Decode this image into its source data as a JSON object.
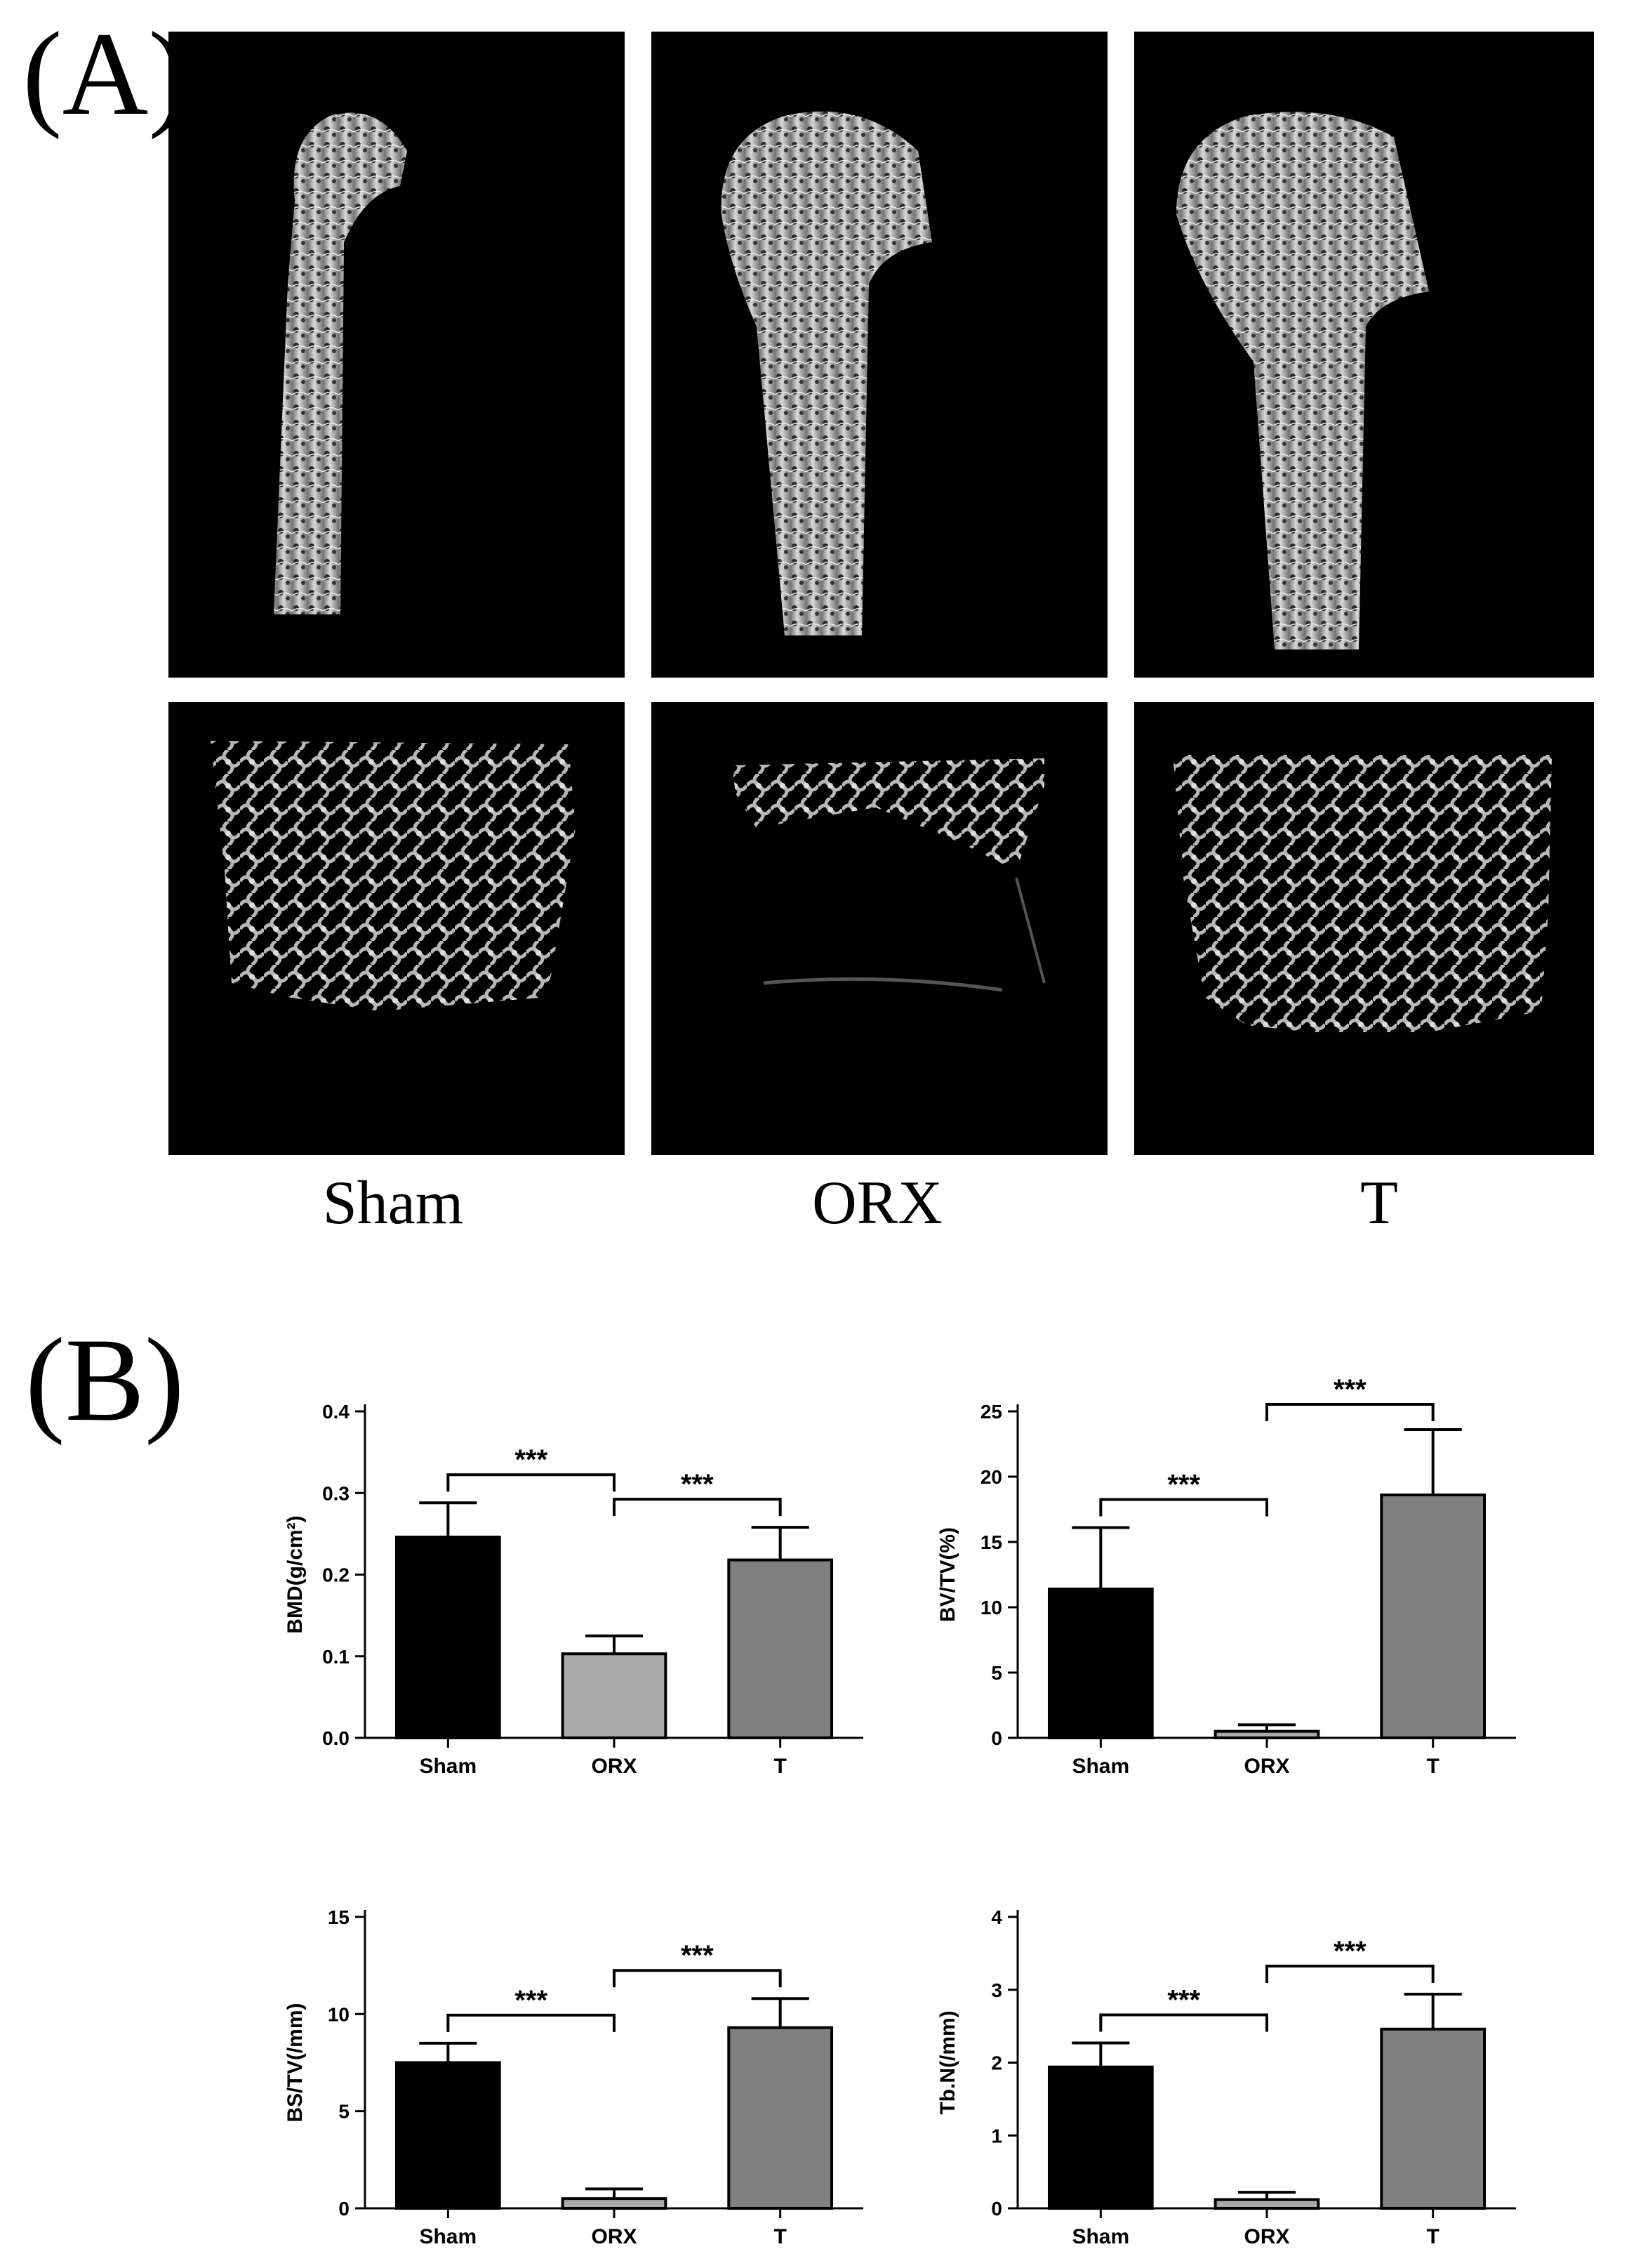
{
  "panels": {
    "a_label": "(A)",
    "b_label": "(B)"
  },
  "groups": [
    "Sham",
    "ORX",
    "T"
  ],
  "colors": {
    "sham": "#000000",
    "orx": "#aaaaaa",
    "t": "#808080",
    "image_bg": "#000000",
    "bone": "#b8b8b8"
  },
  "chart_data": [
    {
      "type": "bar",
      "ylabel": "BMD(g/cm²)",
      "categories": [
        "Sham",
        "ORX",
        "T"
      ],
      "values": [
        0.246,
        0.103,
        0.218
      ],
      "errors": [
        0.042,
        0.022,
        0.04
      ],
      "ylim": [
        0,
        0.4
      ],
      "yticks": [
        "0.0",
        "0.1",
        "0.2",
        "0.3",
        "0.4"
      ],
      "significance": [
        {
          "from": 0,
          "to": 1,
          "label": "***"
        },
        {
          "from": 1,
          "to": 2,
          "label": "***"
        }
      ]
    },
    {
      "type": "bar",
      "ylabel": "BV/TV(%)",
      "categories": [
        "Sham",
        "ORX",
        "T"
      ],
      "values": [
        11.4,
        0.5,
        18.6
      ],
      "errors": [
        4.7,
        0.5,
        5.0
      ],
      "ylim": [
        0,
        25
      ],
      "yticks": [
        "0",
        "5",
        "10",
        "15",
        "20",
        "25"
      ],
      "significance": [
        {
          "from": 0,
          "to": 1,
          "label": "***"
        },
        {
          "from": 1,
          "to": 2,
          "label": "***"
        }
      ]
    },
    {
      "type": "bar",
      "ylabel": "BS/TV(/mm)",
      "categories": [
        "Sham",
        "ORX",
        "T"
      ],
      "values": [
        7.5,
        0.5,
        9.3
      ],
      "errors": [
        1.0,
        0.5,
        1.5
      ],
      "ylim": [
        0,
        15
      ],
      "yticks": [
        "0",
        "5",
        "10",
        "15"
      ],
      "significance": [
        {
          "from": 0,
          "to": 1,
          "label": "***"
        },
        {
          "from": 1,
          "to": 2,
          "label": "***"
        }
      ]
    },
    {
      "type": "bar",
      "ylabel": "Tb.N(/mm)",
      "categories": [
        "Sham",
        "ORX",
        "T"
      ],
      "values": [
        1.94,
        0.12,
        2.46
      ],
      "errors": [
        0.33,
        0.1,
        0.48
      ],
      "ylim": [
        0,
        4
      ],
      "yticks": [
        "0",
        "1",
        "2",
        "3",
        "4"
      ],
      "significance": [
        {
          "from": 0,
          "to": 1,
          "label": "***"
        },
        {
          "from": 1,
          "to": 2,
          "label": "***"
        }
      ]
    }
  ]
}
